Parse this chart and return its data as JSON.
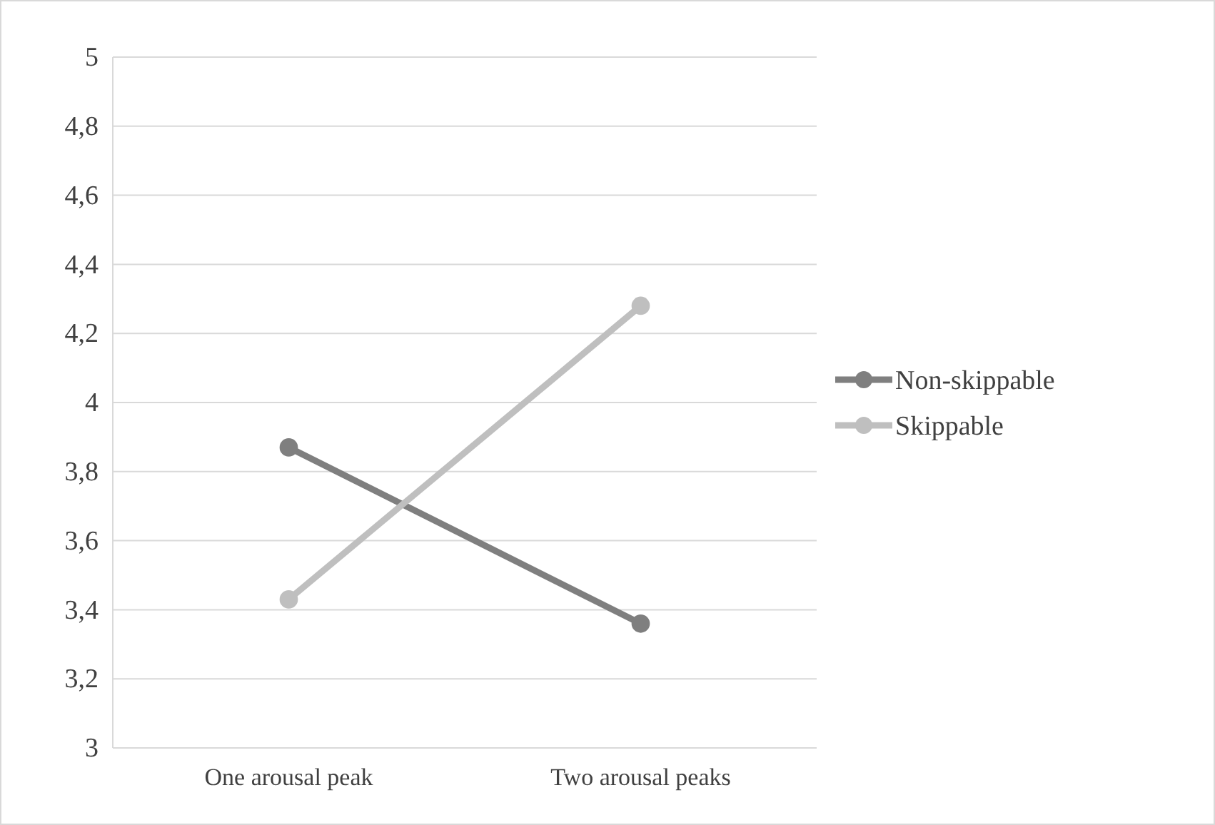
{
  "chart_data": {
    "type": "line",
    "categories": [
      "One arousal peak",
      "Two arousal peaks"
    ],
    "series": [
      {
        "name": "Non-skippable",
        "color": "#7f7f7f",
        "values": [
          3.87,
          3.36
        ]
      },
      {
        "name": "Skippable",
        "color": "#bfbfbf",
        "values": [
          3.43,
          4.28
        ]
      }
    ],
    "ylim": [
      3,
      5
    ],
    "yticks": [
      3,
      {
        "value": 3.2,
        "label": "3,2"
      },
      {
        "value": 3.4,
        "label": "3,4"
      },
      {
        "value": 3.6,
        "label": "3,6"
      },
      {
        "value": 3.8,
        "label": "3,8"
      },
      4,
      {
        "value": 4.2,
        "label": "4,2"
      },
      {
        "value": 4.4,
        "label": "4,4"
      },
      {
        "value": 4.6,
        "label": "4,6"
      },
      {
        "value": 4.8,
        "label": "4,8"
      },
      5
    ],
    "grid": "y",
    "legend": "right",
    "marker": "circle",
    "line_style": "solid"
  }
}
